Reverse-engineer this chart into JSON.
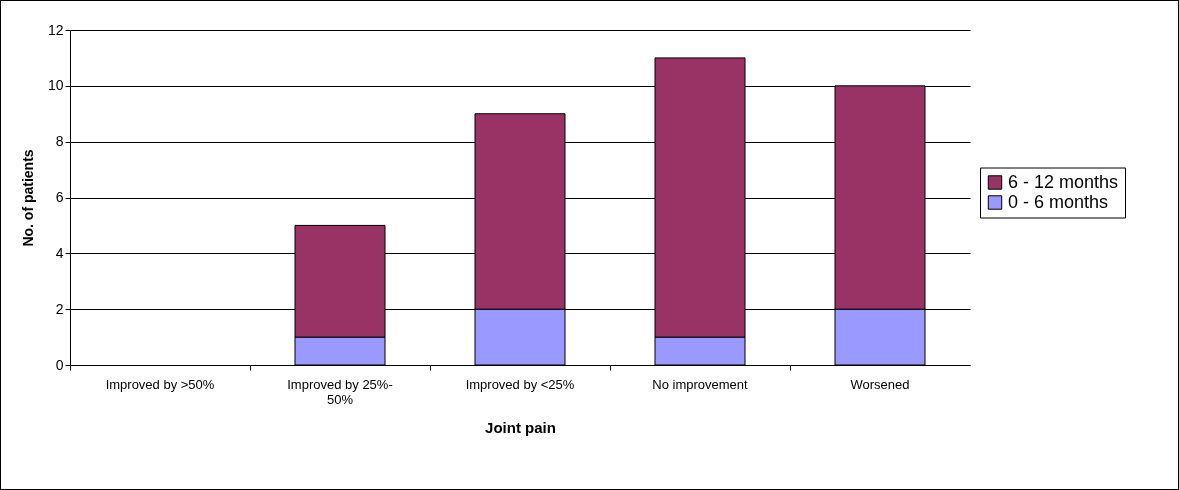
{
  "chart_data": {
    "type": "bar",
    "stacked": true,
    "xlabel": "Joint pain",
    "ylabel": "No. of patients",
    "categories": [
      "Improved by >50%",
      "Improved by 25%-50%",
      "Improved by <25%",
      "No improvement",
      "Worsened"
    ],
    "series": [
      {
        "name": "0 - 6 months",
        "color": "#9999ff",
        "values": [
          0,
          1,
          2,
          1,
          2
        ]
      },
      {
        "name": "6 - 12 months",
        "color": "#993366",
        "values": [
          0,
          4,
          7,
          10,
          8
        ]
      }
    ],
    "ylim": [
      0,
      12
    ],
    "yticks": [
      0,
      2,
      4,
      6,
      8,
      10,
      12
    ],
    "grid": "y",
    "legend": "right"
  }
}
